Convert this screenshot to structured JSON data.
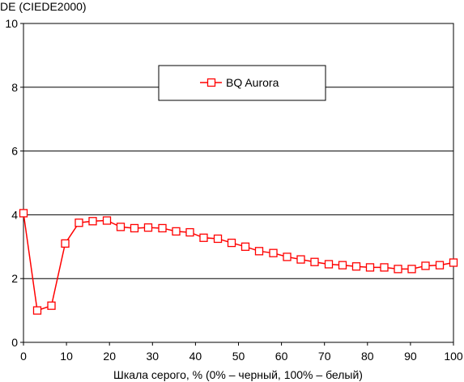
{
  "chart_data": {
    "type": "line",
    "title": "",
    "ylabel": "DE (CIEDE2000)",
    "xlabel": "Шкала серого, % (0% – черный, 100% – белый)",
    "xlim": [
      0,
      100
    ],
    "ylim": [
      0,
      10
    ],
    "xticks": [
      "0",
      "10",
      "20",
      "30",
      "40",
      "50",
      "60",
      "70",
      "80",
      "90",
      "100"
    ],
    "yticks": [
      "0",
      "2",
      "4",
      "6",
      "8",
      "10"
    ],
    "grid": "horizontal",
    "legend_position": "top-center",
    "series_color": "#ff0000",
    "marker": "hollow-square",
    "series": [
      {
        "name": "BQ Aurora",
        "x": [
          0,
          3.2,
          6.5,
          9.7,
          12.9,
          16.1,
          19.4,
          22.6,
          25.8,
          29,
          32.3,
          35.5,
          38.7,
          41.9,
          45.2,
          48.4,
          51.6,
          54.8,
          58.1,
          61.3,
          64.5,
          67.7,
          71,
          74.2,
          77.4,
          80.6,
          83.9,
          87.1,
          90.3,
          93.5,
          96.8,
          100
        ],
        "y": [
          4.05,
          1.0,
          1.15,
          3.1,
          3.75,
          3.8,
          3.82,
          3.62,
          3.58,
          3.6,
          3.58,
          3.48,
          3.45,
          3.28,
          3.25,
          3.12,
          3.0,
          2.86,
          2.8,
          2.68,
          2.6,
          2.52,
          2.45,
          2.42,
          2.38,
          2.35,
          2.35,
          2.3,
          2.3,
          2.4,
          2.42,
          2.5
        ]
      }
    ]
  }
}
